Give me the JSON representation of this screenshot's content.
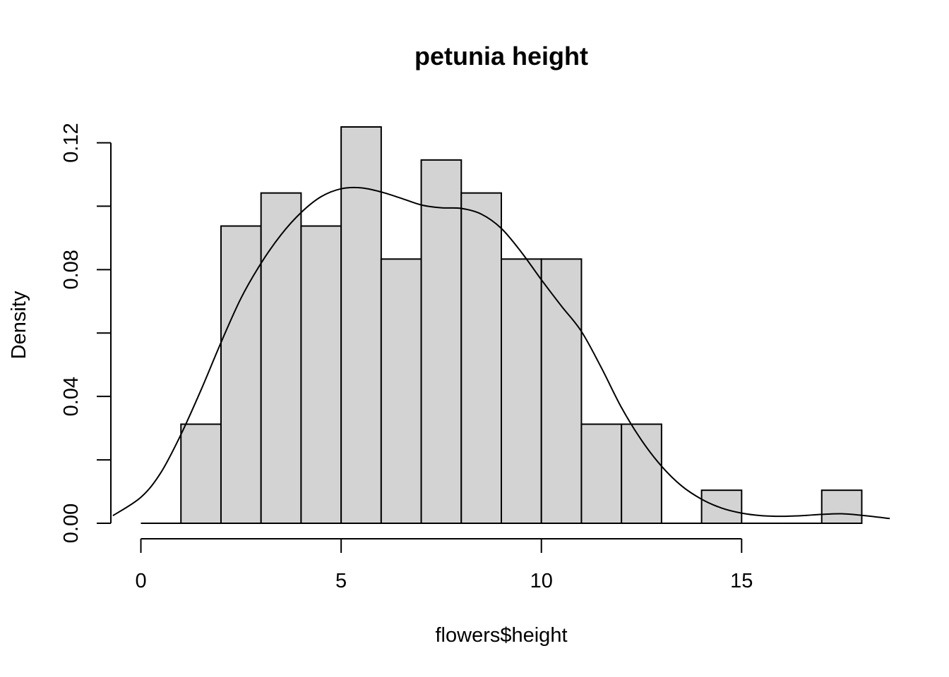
{
  "chart_data": {
    "type": "bar",
    "title": "petunia height",
    "xlabel": "flowers$height",
    "ylabel": "Density",
    "xlim": [
      -0.75,
      18.75
    ],
    "ylim": [
      0,
      0.125
    ],
    "x_ticks": [
      0,
      5,
      10,
      15
    ],
    "y_ticks": [
      0.0,
      0.02,
      0.04,
      0.06,
      0.08,
      0.1,
      0.12
    ],
    "y_tick_labels": [
      "0.00",
      "",
      "0.04",
      "",
      "0.08",
      "",
      "0.12"
    ],
    "bar_color": "#d3d3d3",
    "bins": [
      {
        "from": 0,
        "to": 1,
        "density": 0.0
      },
      {
        "from": 1,
        "to": 2,
        "density": 0.03125
      },
      {
        "from": 2,
        "to": 3,
        "density": 0.09375
      },
      {
        "from": 3,
        "to": 4,
        "density": 0.104167
      },
      {
        "from": 4,
        "to": 5,
        "density": 0.09375
      },
      {
        "from": 5,
        "to": 6,
        "density": 0.125
      },
      {
        "from": 6,
        "to": 7,
        "density": 0.083333
      },
      {
        "from": 7,
        "to": 8,
        "density": 0.114583
      },
      {
        "from": 8,
        "to": 9,
        "density": 0.104167
      },
      {
        "from": 9,
        "to": 10,
        "density": 0.083333
      },
      {
        "from": 10,
        "to": 11,
        "density": 0.083333
      },
      {
        "from": 11,
        "to": 12,
        "density": 0.03125
      },
      {
        "from": 12,
        "to": 13,
        "density": 0.03125
      },
      {
        "from": 13,
        "to": 14,
        "density": 0.0
      },
      {
        "from": 14,
        "to": 15,
        "density": 0.010417
      },
      {
        "from": 15,
        "to": 16,
        "density": 0.0
      },
      {
        "from": 16,
        "to": 17,
        "density": 0.0
      },
      {
        "from": 17,
        "to": 18,
        "density": 0.010417
      }
    ],
    "density_curve": {
      "x": [
        -0.7,
        0,
        0.5,
        1,
        1.5,
        2,
        2.5,
        3,
        3.5,
        4,
        4.5,
        5,
        5.5,
        6,
        6.5,
        7,
        7.5,
        8,
        8.5,
        9,
        9.5,
        10,
        10.5,
        11,
        11.5,
        12,
        12.5,
        13,
        13.5,
        14,
        14.5,
        15,
        15.5,
        16,
        16.5,
        17,
        17.5,
        18,
        18.7
      ],
      "y": [
        0.0024,
        0.0082,
        0.016,
        0.028,
        0.042,
        0.057,
        0.071,
        0.082,
        0.091,
        0.098,
        0.103,
        0.1055,
        0.1058,
        0.1045,
        0.1025,
        0.1004,
        0.0995,
        0.0993,
        0.0975,
        0.093,
        0.0855,
        0.0768,
        0.0685,
        0.0605,
        0.049,
        0.0365,
        0.0262,
        0.018,
        0.0118,
        0.0076,
        0.0048,
        0.0032,
        0.0024,
        0.0022,
        0.0024,
        0.0028,
        0.003,
        0.0025,
        0.0015
      ]
    }
  }
}
